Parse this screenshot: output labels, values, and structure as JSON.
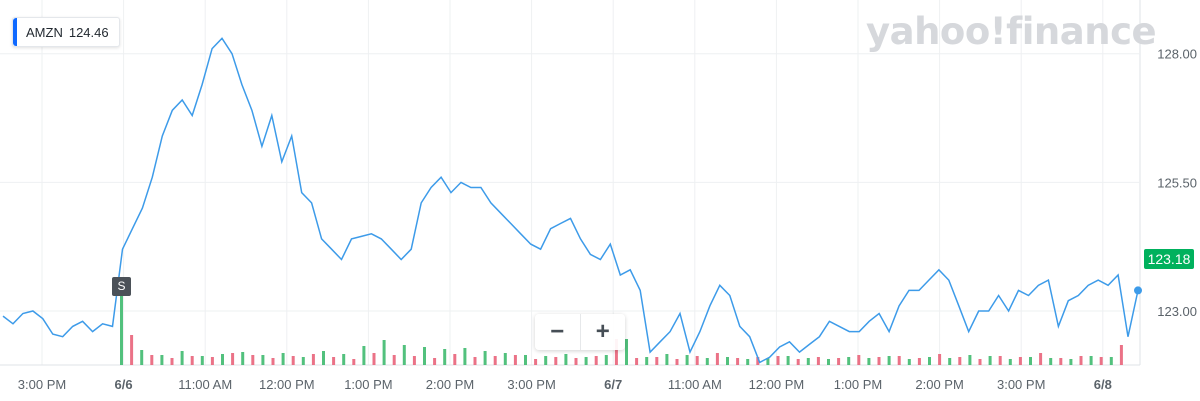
{
  "ticker": {
    "symbol": "AMZN",
    "value": "124.46",
    "accent": "#0f69ff"
  },
  "brand": "yahoo!finance",
  "price_tag": {
    "value": "123.18",
    "color": "#00b15d"
  },
  "split_marker": "S",
  "zoom": {
    "minus": "−",
    "plus": "+"
  },
  "colors": {
    "line": "#3d9be9",
    "up": "#3fba6f",
    "down": "#e9637a",
    "grid": "#eef0f2"
  },
  "chart_data": {
    "type": "line",
    "x_ticks": [
      "3:00 PM",
      "6/6",
      "11:00 AM",
      "12:00 PM",
      "1:00 PM",
      "2:00 PM",
      "3:00 PM",
      "6/7",
      "11:00 AM",
      "12:00 PM",
      "1:00 PM",
      "2:00 PM",
      "3:00 PM",
      "6/8"
    ],
    "y_ticks": [
      "128.00",
      "125.50",
      "123.00"
    ],
    "ylim": [
      121.95,
      128.5
    ],
    "xlim": [
      0,
      34.2
    ],
    "grid": true,
    "series": [
      {
        "x": [
          0,
          0.3,
          0.6,
          0.9,
          1.2,
          1.5,
          1.8,
          2.1,
          2.4,
          2.7,
          3.0,
          3.3,
          3.6,
          3.9,
          4.2,
          4.5,
          4.8,
          5.1,
          5.4,
          5.7,
          6.0,
          6.3,
          6.6,
          6.9,
          7.2,
          7.5,
          7.8,
          8.1,
          8.4,
          8.7,
          9.0,
          9.3,
          9.6,
          9.9,
          10.2,
          10.5,
          10.8,
          11.1,
          11.4,
          11.7,
          12.0,
          12.3,
          12.6,
          12.9,
          13.2,
          13.5,
          13.8,
          14.1,
          14.4,
          14.7,
          15.0,
          15.3,
          15.6,
          15.9,
          16.2,
          16.5,
          16.8,
          17.1,
          17.4,
          17.7,
          18.0,
          18.3,
          18.6,
          18.9,
          19.2,
          19.5,
          19.8,
          20.1,
          20.4,
          20.7,
          21.0,
          21.3,
          21.6,
          21.9,
          22.2,
          22.5,
          22.8,
          23.1,
          23.4,
          23.7,
          24.0,
          24.3,
          24.6,
          24.9,
          25.2,
          25.5,
          25.8,
          26.1,
          26.4,
          26.7,
          27.0,
          27.3,
          27.6,
          27.9,
          28.2,
          28.5,
          28.8,
          29.1,
          29.4,
          29.7,
          30.0,
          30.3,
          30.6,
          30.9,
          31.2,
          31.5,
          31.8,
          32.1,
          32.4,
          32.7,
          33.0,
          33.3,
          33.6,
          33.9,
          34.2
        ],
        "y": [
          122.9,
          122.75,
          122.95,
          123.0,
          122.85,
          122.55,
          122.5,
          122.7,
          122.8,
          122.6,
          122.75,
          122.7,
          124.2,
          124.6,
          125.0,
          125.6,
          126.4,
          126.9,
          127.1,
          126.8,
          127.4,
          128.1,
          128.3,
          128.0,
          127.4,
          126.9,
          126.2,
          126.8,
          125.9,
          126.4,
          125.3,
          125.1,
          124.4,
          124.2,
          124.0,
          124.4,
          124.45,
          124.5,
          124.4,
          124.2,
          124.0,
          124.2,
          125.1,
          125.4,
          125.6,
          125.3,
          125.5,
          125.4,
          125.4,
          125.1,
          124.9,
          124.7,
          124.5,
          124.3,
          124.2,
          124.6,
          124.7,
          124.8,
          124.4,
          124.1,
          124.0,
          124.3,
          123.7,
          123.8,
          123.4,
          122.2,
          122.4,
          122.6,
          122.95,
          122.2,
          122.6,
          123.1,
          123.5,
          123.3,
          122.7,
          122.5,
          122.0,
          122.1,
          122.3,
          122.4,
          122.2,
          122.35,
          122.5,
          122.8,
          122.7,
          122.6,
          122.6,
          122.8,
          122.95,
          122.6,
          123.1,
          123.4,
          123.4,
          123.6,
          123.8,
          123.6,
          123.1,
          122.6,
          123.0,
          123.0,
          123.3,
          123.0,
          123.4,
          123.3,
          123.5,
          123.6,
          122.7,
          123.2,
          123.3,
          123.5,
          123.6,
          123.5,
          123.7,
          122.5,
          123.4
        ],
        "volume_up": [
          12,
          15,
          10,
          14,
          9,
          11,
          13,
          10,
          12,
          8,
          14,
          11,
          19,
          25,
          20,
          18,
          16,
          17,
          14,
          12,
          10,
          9,
          11,
          8,
          10,
          9,
          8,
          11,
          10,
          7,
          8,
          6,
          7,
          9,
          7,
          6,
          8,
          7,
          9,
          6,
          8,
          7,
          10,
          9,
          6,
          8,
          7,
          6,
          9,
          8
        ],
        "volume_down": [
          8,
          10,
          7,
          9,
          8,
          12,
          10,
          7,
          9,
          11,
          8,
          6,
          12,
          10,
          9,
          7,
          11,
          8,
          9,
          10,
          6,
          8,
          7,
          9,
          11,
          7,
          8,
          6,
          9,
          12,
          7,
          8,
          9,
          6,
          8,
          7,
          10,
          8,
          9,
          7,
          11,
          8,
          6,
          9,
          8,
          12,
          7,
          9,
          8,
          20
        ]
      }
    ]
  }
}
